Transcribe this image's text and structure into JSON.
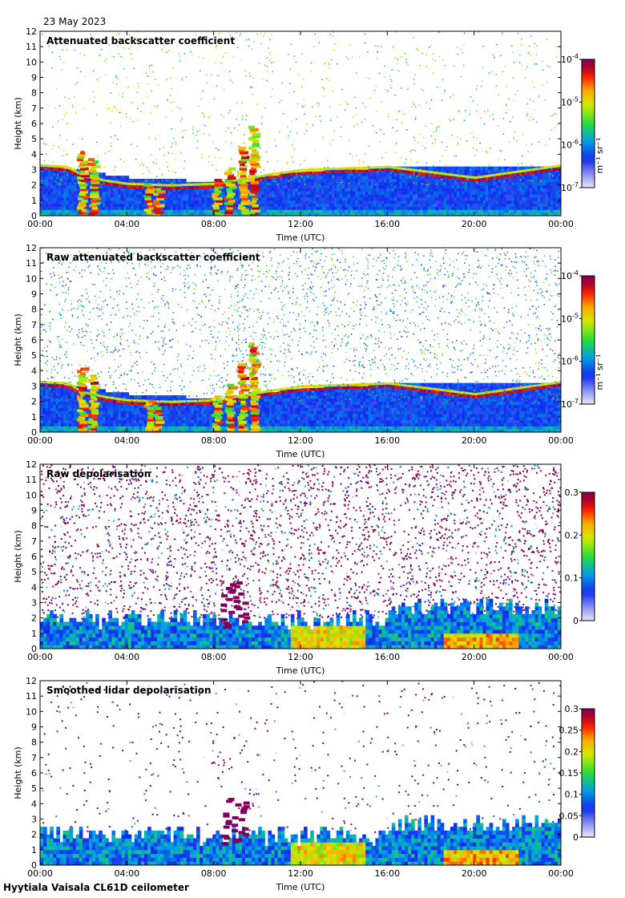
{
  "date": "23 May 2023",
  "footer": "Hyytiala Vaisala CL61D ceilometer",
  "chart_data": [
    {
      "type": "heatmap",
      "title": "Attenuated backscatter coefficient",
      "xlabel": "Time (UTC)",
      "ylabel": "Height (km)",
      "x_ticks": [
        "00:00",
        "04:00",
        "08:00",
        "12:00",
        "16:00",
        "20:00",
        "00:00"
      ],
      "y_ticks": [
        "0",
        "1",
        "2",
        "3",
        "4",
        "5",
        "6",
        "7",
        "8",
        "9",
        "10",
        "11",
        "12"
      ],
      "ylim": [
        0,
        12
      ],
      "colorbar": {
        "scale": "log",
        "range": [
          1e-07,
          0.0001
        ],
        "labels": [
          "10-7",
          "10-6",
          "10-5",
          "10-4"
        ],
        "units": "m-1 sr-1"
      },
      "features": {
        "cloud_base_km": [
          [
            0,
            3.0
          ],
          [
            1.2,
            2.9
          ],
          [
            2.0,
            2.3
          ],
          [
            3.0,
            2.0
          ],
          [
            4.0,
            1.8
          ],
          [
            6.0,
            1.7
          ],
          [
            8.0,
            1.8
          ],
          [
            10.5,
            2.4
          ],
          [
            12.0,
            2.7
          ],
          [
            16.0,
            2.9
          ],
          [
            20.0,
            2.2
          ],
          [
            24.0,
            3.0
          ]
        ],
        "aerosol_layer_top_km": [
          [
            0,
            3.2
          ],
          [
            4,
            2.4
          ],
          [
            8,
            2.1
          ],
          [
            10,
            2.5
          ],
          [
            16,
            3.1
          ],
          [
            20,
            3.2
          ],
          [
            24,
            3.2
          ]
        ]
      }
    },
    {
      "type": "heatmap",
      "title": "Raw attenuated backscatter coefficient",
      "xlabel": "Time (UTC)",
      "ylabel": "Height (km)",
      "x_ticks": [
        "00:00",
        "04:00",
        "08:00",
        "12:00",
        "16:00",
        "20:00",
        "00:00"
      ],
      "y_ticks": [
        "0",
        "1",
        "2",
        "3",
        "4",
        "5",
        "6",
        "7",
        "8",
        "9",
        "10",
        "11",
        "12"
      ],
      "ylim": [
        0,
        12
      ],
      "colorbar": {
        "scale": "log",
        "range": [
          1e-07,
          0.0001
        ],
        "labels": [
          "10-7",
          "10-6",
          "10-5",
          "10-4"
        ],
        "units": "m-1 sr-1"
      }
    },
    {
      "type": "heatmap",
      "title": "Raw depolarisation",
      "xlabel": "Time (UTC)",
      "ylabel": "Height (km)",
      "x_ticks": [
        "00:00",
        "04:00",
        "08:00",
        "12:00",
        "16:00",
        "20:00",
        "00:00"
      ],
      "y_ticks": [
        "0",
        "1",
        "2",
        "3",
        "4",
        "5",
        "6",
        "7",
        "8",
        "9",
        "10",
        "11",
        "12"
      ],
      "ylim": [
        0,
        12
      ],
      "colorbar": {
        "scale": "linear",
        "range": [
          0,
          0.3
        ],
        "labels": [
          "0",
          "0.1",
          "0.2",
          "0.3"
        ]
      }
    },
    {
      "type": "heatmap",
      "title": "Smoothed lidar depolarisation",
      "xlabel": "Time (UTC)",
      "ylabel": "Height (km)",
      "x_ticks": [
        "00:00",
        "04:00",
        "08:00",
        "12:00",
        "16:00",
        "20:00",
        "00:00"
      ],
      "y_ticks": [
        "0",
        "1",
        "2",
        "3",
        "4",
        "5",
        "6",
        "7",
        "8",
        "9",
        "10",
        "11",
        "12"
      ],
      "ylim": [
        0,
        12
      ],
      "colorbar": {
        "scale": "linear",
        "range": [
          0,
          0.3
        ],
        "labels": [
          "0",
          "0.05",
          "0.1",
          "0.15",
          "0.2",
          "0.25",
          "0.3"
        ]
      }
    }
  ]
}
